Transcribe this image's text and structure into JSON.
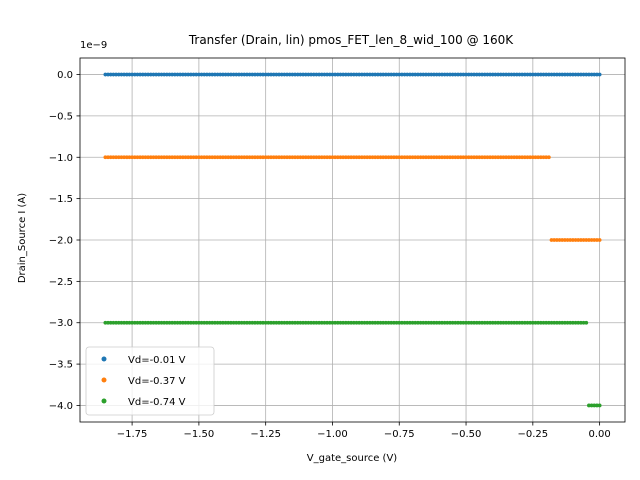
{
  "chart_data": {
    "type": "scatter",
    "title": "Transfer (Drain, lin) pmos_FET_len_8_wid_100 @ 160K",
    "xlabel": "V_gate_source (V)",
    "ylabel": "Drain_Source I (A)",
    "y_offset_label": "1e−9",
    "xlim": [
      -1.945,
      0.095
    ],
    "ylim": [
      -4.2,
      0.2
    ],
    "x_ticks": [
      -1.75,
      -1.5,
      -1.25,
      -1.0,
      -0.75,
      -0.5,
      -0.25,
      0.0
    ],
    "x_tick_labels": [
      "−1.75",
      "−1.50",
      "−1.25",
      "−1.00",
      "−0.75",
      "−0.50",
      "−0.25",
      "0.00"
    ],
    "y_ticks": [
      0.0,
      -0.5,
      -1.0,
      -1.5,
      -2.0,
      -2.5,
      -3.0,
      -3.5,
      -4.0
    ],
    "y_tick_labels": [
      "0.0",
      "−0.5",
      "−1.0",
      "−1.5",
      "−2.0",
      "−2.5",
      "−3.0",
      "−3.5",
      "−4.0"
    ],
    "grid": true,
    "legend_position": "lower-left",
    "series": [
      {
        "name": "Vd=-0.01 V",
        "color": "#1f77b4",
        "segments": [
          {
            "x_start": -1.85,
            "x_end": 0.0,
            "y": 0.0
          }
        ]
      },
      {
        "name": "Vd=-0.37 V",
        "color": "#ff7f0e",
        "segments": [
          {
            "x_start": -1.85,
            "x_end": -0.19,
            "y": -1.0
          },
          {
            "x_start": -0.18,
            "x_end": 0.0,
            "y": -2.0
          }
        ]
      },
      {
        "name": "Vd=-0.74 V",
        "color": "#2ca02c",
        "segments": [
          {
            "x_start": -1.85,
            "x_end": -0.05,
            "y": -3.0
          },
          {
            "x_start": -0.04,
            "x_end": 0.0,
            "y": -4.0
          }
        ]
      }
    ]
  }
}
